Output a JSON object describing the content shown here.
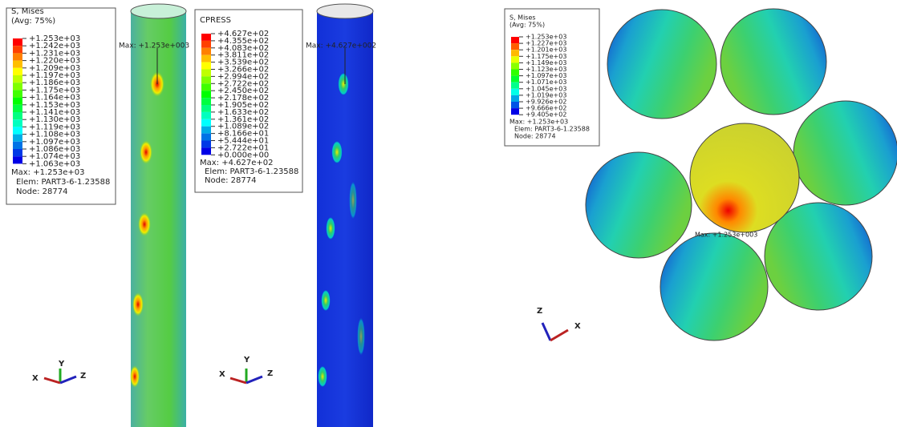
{
  "legends": [
    {
      "title": "S, Mises",
      "subtitle": "(Avg: 75%)",
      "levels": [
        "+1.253e+03",
        "+1.242e+03",
        "+1.231e+03",
        "+1.220e+03",
        "+1.209e+03",
        "+1.197e+03",
        "+1.186e+03",
        "+1.175e+03",
        "+1.164e+03",
        "+1.153e+03",
        "+1.141e+03",
        "+1.130e+03",
        "+1.119e+03",
        "+1.108e+03",
        "+1.097e+03",
        "+1.086e+03",
        "+1.074e+03",
        "+1.063e+03"
      ],
      "max": "Max: +1.253e+03",
      "elem": "Elem: PART3-6-1.23588",
      "node": "Node: 28774"
    },
    {
      "title": "CPRESS",
      "levels": [
        "+4.627e+02",
        "+4.355e+02",
        "+4.083e+02",
        "+3.811e+02",
        "+3.539e+02",
        "+3.266e+02",
        "+2.994e+02",
        "+2.722e+02",
        "+2.450e+02",
        "+2.178e+02",
        "+1.905e+02",
        "+1.633e+02",
        "+1.361e+02",
        "+1.089e+02",
        "+8.166e+01",
        "+5.444e+01",
        "+2.722e+01",
        "+0.000e+00"
      ],
      "max": "Max: +4.627e+02",
      "elem": "Elem: PART3-6-1.23588",
      "node": "Node: 28774"
    },
    {
      "title": "S, Mises",
      "subtitle": "(Avg: 75%)",
      "levels": [
        "+1.253e+03",
        "+1.227e+03",
        "+1.201e+03",
        "+1.175e+03",
        "+1.149e+03",
        "+1.123e+03",
        "+1.097e+03",
        "+1.071e+03",
        "+1.045e+03",
        "+1.019e+03",
        "+9.926e+02",
        "+9.666e+02",
        "+9.405e+02"
      ],
      "max": "Max: +1.253e+03",
      "elem": "Elem: PART3-6-1.23588",
      "node": "Node: 28774"
    }
  ],
  "model_labels": [
    "Max: +1.253e+003",
    "Max: +4.627e+002",
    "Max: +1.253e+003"
  ],
  "axes": {
    "x": "X",
    "y": "Y",
    "z": "Z"
  }
}
